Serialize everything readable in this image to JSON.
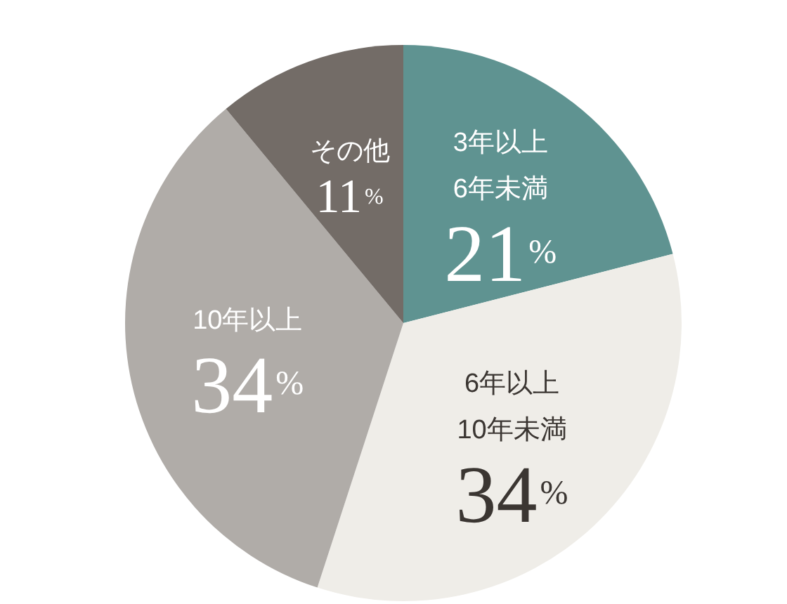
{
  "chart_data": {
    "type": "pie",
    "categories": [
      "3年以上\n6年未満",
      "6年以上\n10年未満",
      "10年以上",
      "その他"
    ],
    "values": [
      21,
      34,
      34,
      11
    ],
    "colors": [
      "#5f9391",
      "#efede8",
      "#b0aca8",
      "#736c67"
    ],
    "value_labels": [
      "21%",
      "34%",
      "34%",
      "11%"
    ]
  }
}
